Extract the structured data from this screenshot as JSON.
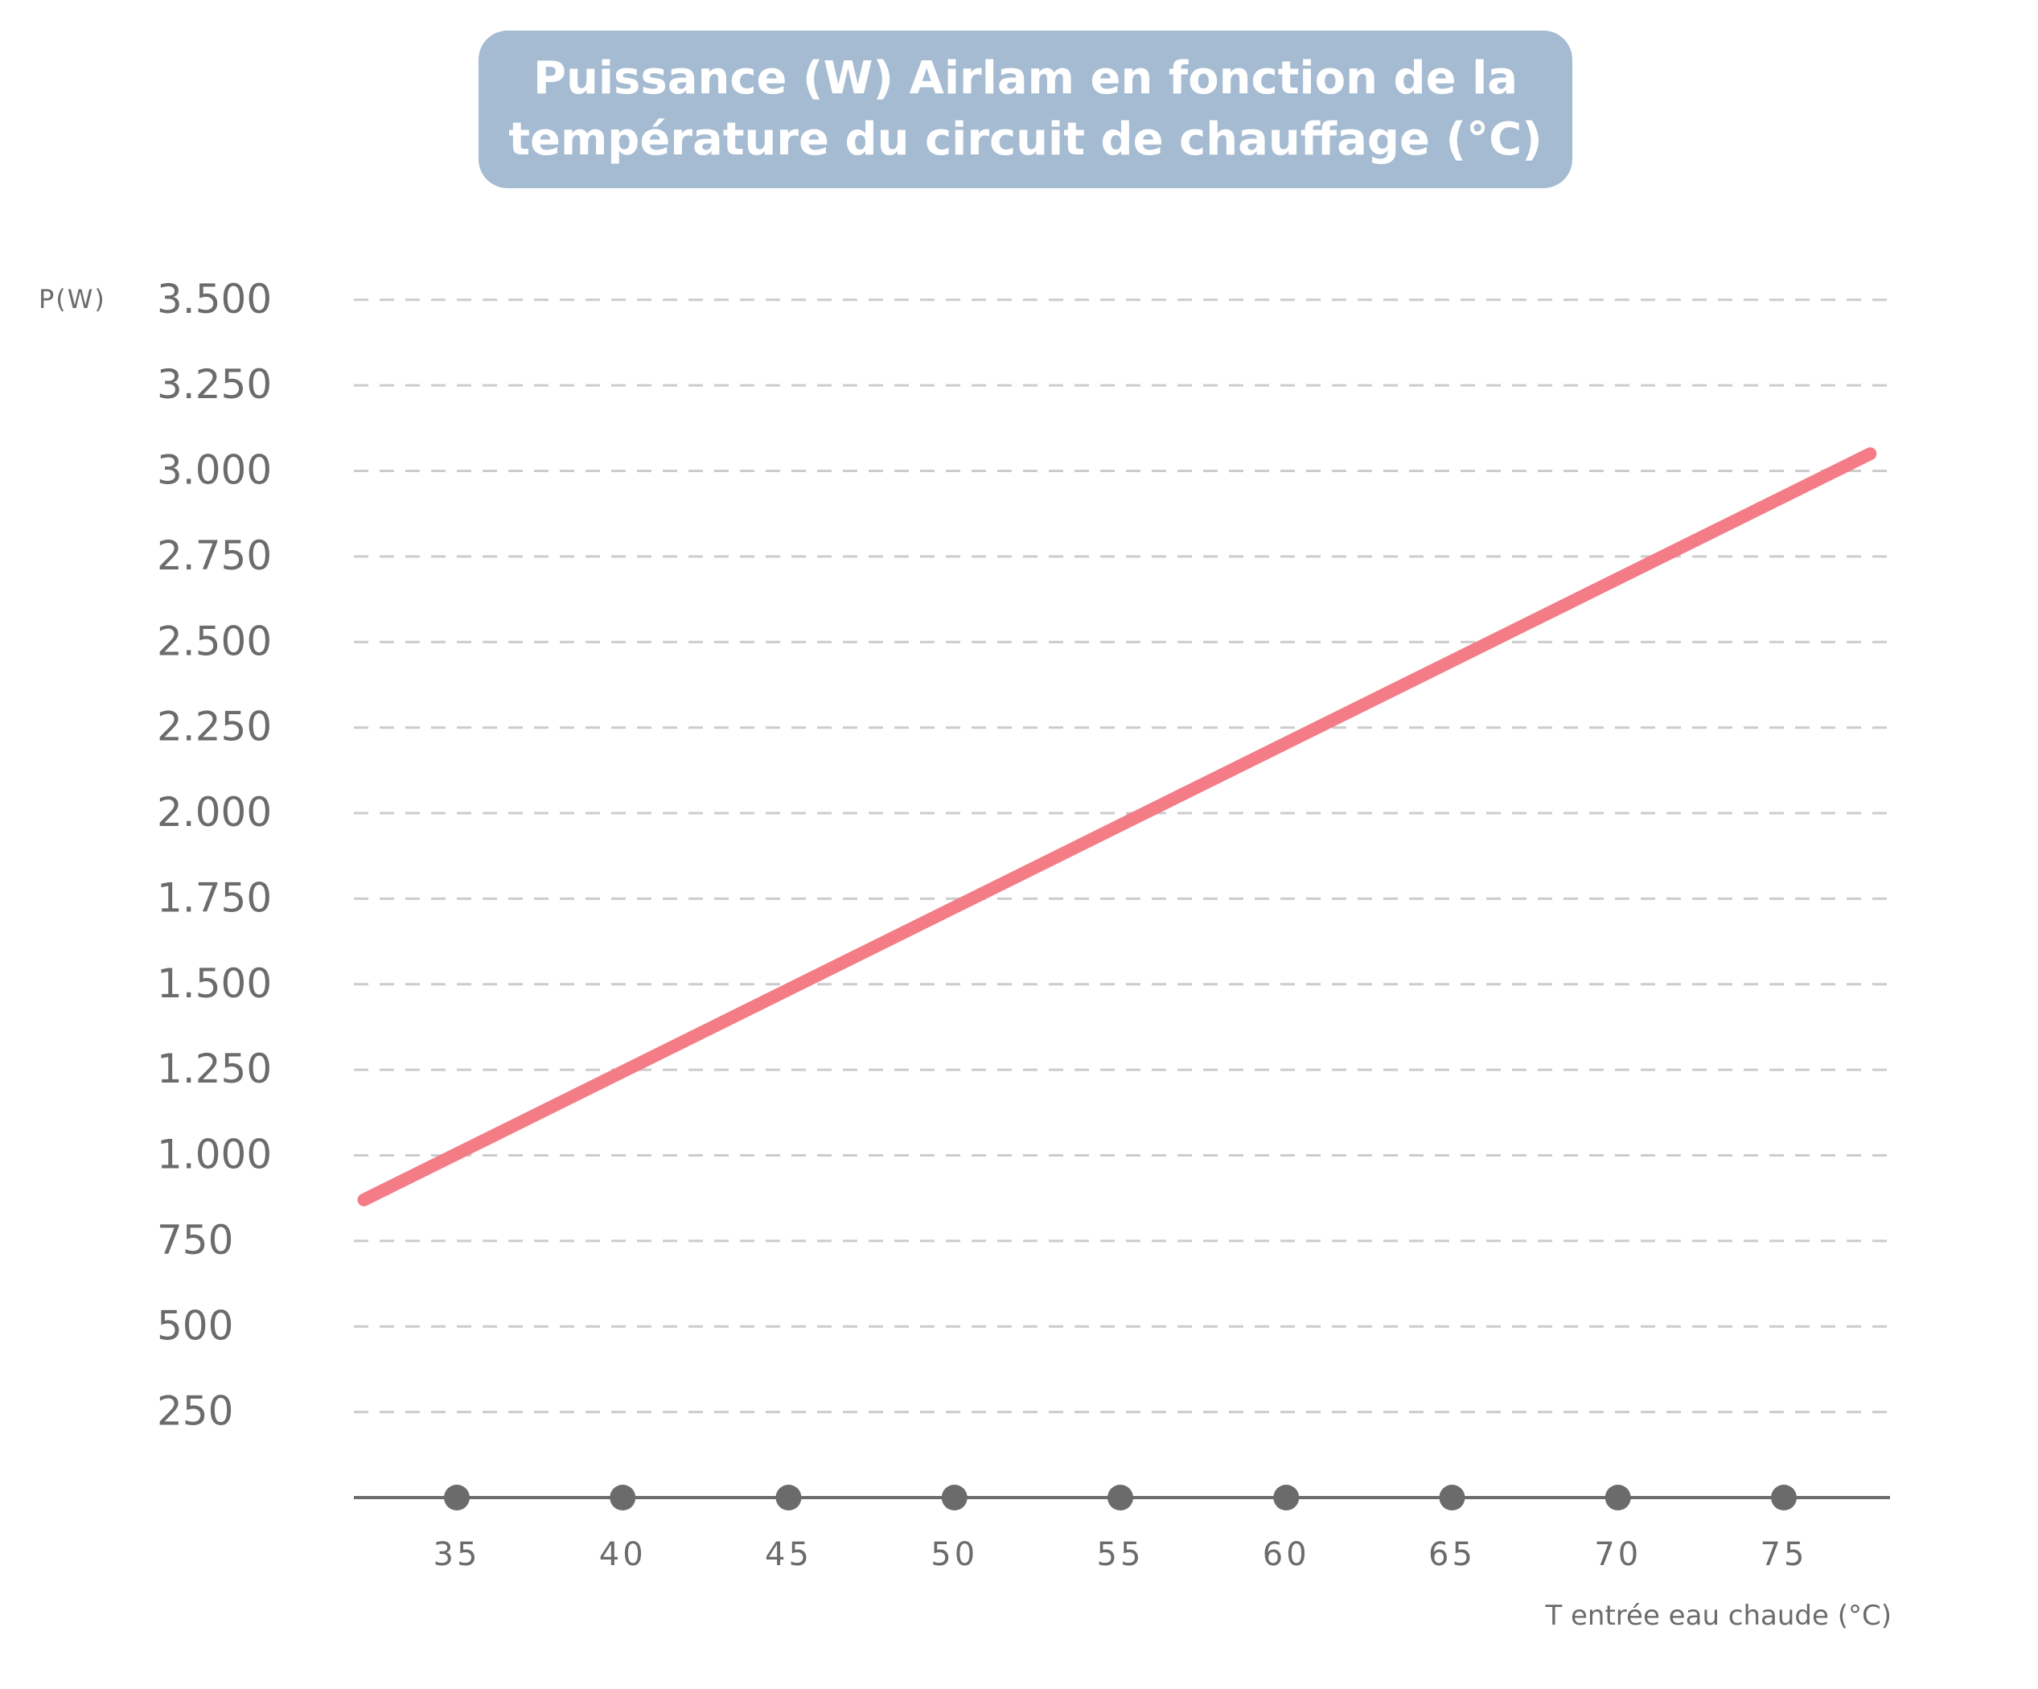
{
  "title": {
    "line1": "Puissance (W) Airlam en fonction de la",
    "line2": "température du circuit de chauffage (°C)"
  },
  "chart_data": {
    "type": "line",
    "title": "Puissance (W) Airlam en fonction de la température du circuit de chauffage (°C)",
    "ylabel": "P(W)",
    "xlabel": "T entrée eau chaude (°C)",
    "y_ticks": [
      250,
      500,
      750,
      1000,
      1250,
      1500,
      1750,
      2000,
      2250,
      2500,
      2750,
      3000,
      3250,
      3500
    ],
    "y_tick_labels": [
      "250",
      "500",
      "750",
      "1.000",
      "1.250",
      "1.500",
      "1.750",
      "2.000",
      "2.250",
      "2.500",
      "2.750",
      "3.000",
      "3.250",
      "3.500"
    ],
    "x_ticks": [
      35,
      40,
      45,
      50,
      55,
      60,
      65,
      70,
      75
    ],
    "x_tick_labels": [
      "35",
      "40",
      "45",
      "50",
      "55",
      "60",
      "65",
      "70",
      "75"
    ],
    "xlim": [
      32,
      78
    ],
    "ylim": [
      0,
      3500
    ],
    "grid": true,
    "grid_style": "dashed horizontal",
    "series": [
      {
        "color": "#f47c86",
        "x": [
          32.2,
          77.6
        ],
        "y": [
          870,
          3050
        ]
      }
    ],
    "colors": {
      "line": "#f47c86",
      "grid": "#cccccc",
      "axis": "#6b6b6b",
      "markers": "#6b6b6b",
      "title_box": "#a5bbd1",
      "title_text": "#ffffff"
    }
  }
}
